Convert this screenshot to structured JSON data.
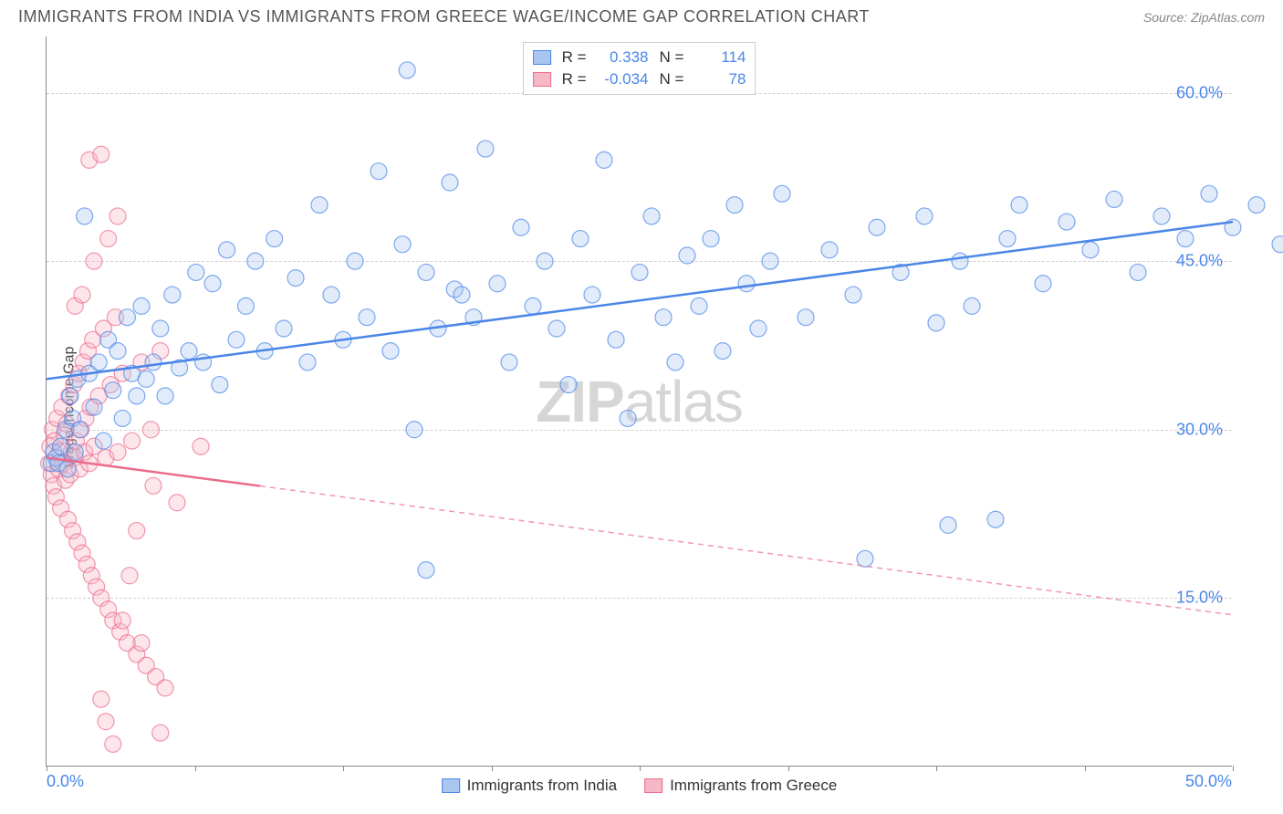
{
  "header": {
    "title": "IMMIGRANTS FROM INDIA VS IMMIGRANTS FROM GREECE WAGE/INCOME GAP CORRELATION CHART",
    "source": "Source: ZipAtlas.com"
  },
  "watermark": {
    "bold": "ZIP",
    "light": "atlas"
  },
  "chart": {
    "type": "scatter",
    "ylabel": "Wage/Income Gap",
    "background_color": "#ffffff",
    "grid_color": "#d0d0d0",
    "axis_color": "#888888",
    "xlim": [
      0,
      50
    ],
    "ylim": [
      0,
      65
    ],
    "xtick_positions": [
      0,
      6.25,
      12.5,
      18.75,
      25,
      31.25,
      37.5,
      43.75,
      50
    ],
    "xtick_labels": {
      "0": "0.0%",
      "50": "50.0%"
    },
    "ytick_positions": [
      15,
      30,
      45,
      60
    ],
    "ytick_labels": {
      "15": "15.0%",
      "30": "30.0%",
      "45": "45.0%",
      "60": "60.0%"
    },
    "label_color": "#4a86e8",
    "label_fontsize": 18,
    "ylabel_color": "#444444",
    "ylabel_fontsize": 16,
    "marker_radius": 9,
    "marker_fill_opacity": 0.35,
    "marker_stroke_width": 1.2,
    "trend_line_width": 2.5,
    "series": [
      {
        "name": "Immigrants from India",
        "color": "#4a86e8",
        "fill_color": "#a8c6f0",
        "R": "0.338",
        "N": "114",
        "trend": {
          "x1": 0,
          "y1": 34.5,
          "x2": 50,
          "y2": 48.5,
          "solid_until_x": 50
        },
        "points": [
          [
            0.2,
            27
          ],
          [
            0.3,
            28
          ],
          [
            0.4,
            27.5
          ],
          [
            0.5,
            27
          ],
          [
            0.6,
            28.5
          ],
          [
            0.8,
            30
          ],
          [
            0.9,
            26.5
          ],
          [
            1.0,
            33
          ],
          [
            1.1,
            31
          ],
          [
            1.2,
            28
          ],
          [
            1.3,
            34.5
          ],
          [
            1.4,
            30
          ],
          [
            1.6,
            49
          ],
          [
            1.8,
            35
          ],
          [
            2.0,
            32
          ],
          [
            2.2,
            36
          ],
          [
            2.4,
            29
          ],
          [
            2.6,
            38
          ],
          [
            2.8,
            33.5
          ],
          [
            3.0,
            37
          ],
          [
            3.2,
            31
          ],
          [
            3.4,
            40
          ],
          [
            3.6,
            35
          ],
          [
            3.8,
            33
          ],
          [
            4.0,
            41
          ],
          [
            4.2,
            34.5
          ],
          [
            4.5,
            36
          ],
          [
            4.8,
            39
          ],
          [
            5.0,
            33
          ],
          [
            5.3,
            42
          ],
          [
            5.6,
            35.5
          ],
          [
            6.0,
            37
          ],
          [
            6.3,
            44
          ],
          [
            6.6,
            36
          ],
          [
            7.0,
            43
          ],
          [
            7.3,
            34
          ],
          [
            7.6,
            46
          ],
          [
            8.0,
            38
          ],
          [
            8.4,
            41
          ],
          [
            8.8,
            45
          ],
          [
            9.2,
            37
          ],
          [
            9.6,
            47
          ],
          [
            10.0,
            39
          ],
          [
            10.5,
            43.5
          ],
          [
            11.0,
            36
          ],
          [
            11.5,
            50
          ],
          [
            12.0,
            42
          ],
          [
            12.5,
            38
          ],
          [
            13.0,
            45
          ],
          [
            13.5,
            40
          ],
          [
            14.0,
            53
          ],
          [
            14.5,
            37
          ],
          [
            15.0,
            46.5
          ],
          [
            15.2,
            62
          ],
          [
            15.5,
            30
          ],
          [
            16.0,
            17.5
          ],
          [
            16.0,
            44
          ],
          [
            16.5,
            39
          ],
          [
            17.0,
            52
          ],
          [
            17.2,
            42.5
          ],
          [
            17.5,
            42
          ],
          [
            18.0,
            40
          ],
          [
            18.5,
            55
          ],
          [
            19.0,
            43
          ],
          [
            19.5,
            36
          ],
          [
            20.0,
            48
          ],
          [
            20.5,
            41
          ],
          [
            21.0,
            45
          ],
          [
            21.5,
            39
          ],
          [
            22.0,
            34
          ],
          [
            22.5,
            47
          ],
          [
            23.0,
            42
          ],
          [
            23.2,
            61.5
          ],
          [
            23.5,
            54
          ],
          [
            24.0,
            38
          ],
          [
            24.5,
            31
          ],
          [
            25.0,
            44
          ],
          [
            25.5,
            49
          ],
          [
            26.0,
            40
          ],
          [
            26.5,
            36
          ],
          [
            27.0,
            45.5
          ],
          [
            27.5,
            41
          ],
          [
            28.0,
            47
          ],
          [
            28.5,
            37
          ],
          [
            29.0,
            50
          ],
          [
            29.5,
            43
          ],
          [
            30.0,
            39
          ],
          [
            30.5,
            45
          ],
          [
            31.0,
            51
          ],
          [
            32.0,
            40
          ],
          [
            33.0,
            46
          ],
          [
            34.0,
            42
          ],
          [
            34.5,
            18.5
          ],
          [
            35.0,
            48
          ],
          [
            36.0,
            44
          ],
          [
            37.0,
            49
          ],
          [
            37.5,
            39.5
          ],
          [
            38.0,
            21.5
          ],
          [
            38.5,
            45
          ],
          [
            39.0,
            41
          ],
          [
            40.0,
            22
          ],
          [
            40.5,
            47
          ],
          [
            41.0,
            50
          ],
          [
            42.0,
            43
          ],
          [
            43.0,
            48.5
          ],
          [
            44.0,
            46
          ],
          [
            45.0,
            50.5
          ],
          [
            46.0,
            44
          ],
          [
            47.0,
            49
          ],
          [
            48.0,
            47
          ],
          [
            49.0,
            51
          ],
          [
            50.0,
            48
          ],
          [
            51.0,
            50
          ],
          [
            52.0,
            46.5
          ]
        ]
      },
      {
        "name": "Immigrants from Greece",
        "color": "#ec6b8a",
        "fill_color": "#f5b8c6",
        "R": "-0.034",
        "N": "78",
        "trend": {
          "x1": 0,
          "y1": 27.5,
          "x2": 50,
          "y2": 13.5,
          "solid_until_x": 9
        },
        "points": [
          [
            0.1,
            27
          ],
          [
            0.15,
            28.5
          ],
          [
            0.2,
            26
          ],
          [
            0.25,
            30
          ],
          [
            0.3,
            25
          ],
          [
            0.35,
            29
          ],
          [
            0.4,
            24
          ],
          [
            0.45,
            31
          ],
          [
            0.5,
            26.5
          ],
          [
            0.55,
            28
          ],
          [
            0.6,
            23
          ],
          [
            0.65,
            32
          ],
          [
            0.7,
            27
          ],
          [
            0.75,
            29.5
          ],
          [
            0.8,
            25.5
          ],
          [
            0.85,
            30.5
          ],
          [
            0.9,
            22
          ],
          [
            0.95,
            33
          ],
          [
            1.0,
            26
          ],
          [
            1.05,
            28
          ],
          [
            1.1,
            21
          ],
          [
            1.15,
            34
          ],
          [
            1.2,
            27.5
          ],
          [
            1.25,
            29
          ],
          [
            1.3,
            20
          ],
          [
            1.35,
            35
          ],
          [
            1.4,
            26.5
          ],
          [
            1.45,
            30
          ],
          [
            1.5,
            19
          ],
          [
            1.55,
            36
          ],
          [
            1.6,
            28
          ],
          [
            1.65,
            31
          ],
          [
            1.7,
            18
          ],
          [
            1.75,
            37
          ],
          [
            1.8,
            27
          ],
          [
            1.85,
            32
          ],
          [
            1.9,
            17
          ],
          [
            1.95,
            38
          ],
          [
            2.0,
            28.5
          ],
          [
            2.1,
            16
          ],
          [
            2.2,
            33
          ],
          [
            2.3,
            15
          ],
          [
            2.4,
            39
          ],
          [
            2.5,
            27.5
          ],
          [
            2.6,
            14
          ],
          [
            2.7,
            34
          ],
          [
            2.8,
            13
          ],
          [
            2.9,
            40
          ],
          [
            3.0,
            28
          ],
          [
            3.1,
            12
          ],
          [
            3.2,
            35
          ],
          [
            3.4,
            11
          ],
          [
            3.6,
            29
          ],
          [
            3.8,
            10
          ],
          [
            4.0,
            36
          ],
          [
            4.2,
            9
          ],
          [
            4.4,
            30
          ],
          [
            4.6,
            8
          ],
          [
            4.8,
            37
          ],
          [
            5.0,
            7
          ],
          [
            1.2,
            41
          ],
          [
            1.5,
            42
          ],
          [
            1.8,
            54
          ],
          [
            2.0,
            45
          ],
          [
            2.3,
            54.5
          ],
          [
            2.3,
            6
          ],
          [
            2.5,
            4
          ],
          [
            2.6,
            47
          ],
          [
            2.8,
            2
          ],
          [
            3.0,
            49
          ],
          [
            3.2,
            13
          ],
          [
            3.5,
            17
          ],
          [
            3.8,
            21
          ],
          [
            4.0,
            11
          ],
          [
            4.5,
            25
          ],
          [
            4.8,
            3
          ],
          [
            5.5,
            23.5
          ],
          [
            6.5,
            28.5
          ]
        ]
      }
    ],
    "bottom_legend": [
      {
        "label": "Immigrants from India",
        "fill": "#a8c6f0",
        "border": "#4a86e8"
      },
      {
        "label": "Immigrants from Greece",
        "fill": "#f5b8c6",
        "border": "#ec6b8a"
      }
    ]
  }
}
